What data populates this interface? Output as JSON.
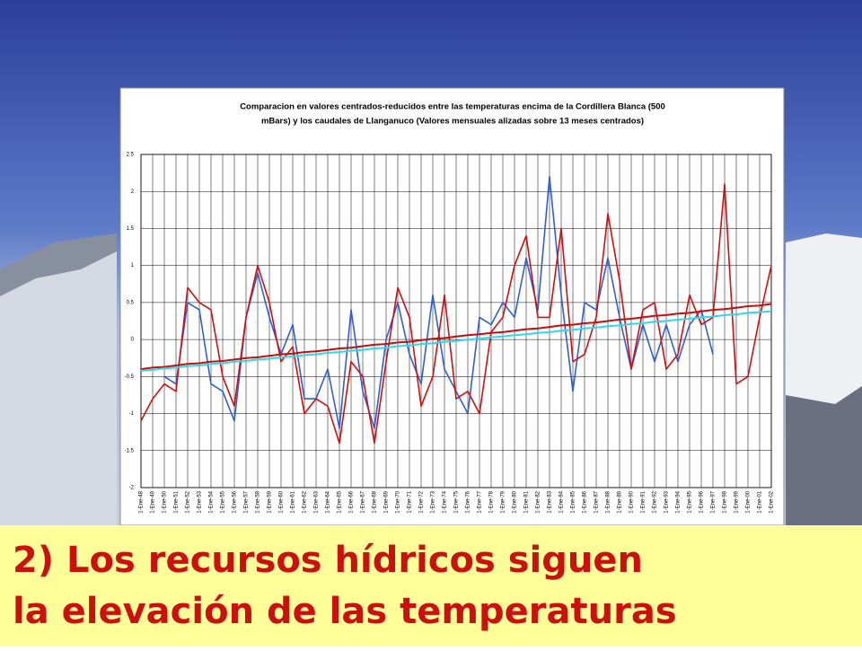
{
  "slide": {
    "caption": [
      "2) Los recursos hídricos siguen",
      "la elevación de las temperaturas"
    ]
  },
  "chart_data": {
    "type": "line",
    "title": [
      "Comparacion en valores centrados-reducidos entre las temperaturas encima de la Cordillera Blanca (500",
      "mBars) y los caudales de Llanganuco (Valores mensuales alizadas sobre 13 meses centrados)"
    ],
    "categories": [
      "1-Ene-48",
      "1-Ene-49",
      "1-Ene-50",
      "1-Ene-51",
      "1-Ene-52",
      "1-Ene-53",
      "1-Ene-54",
      "1-Ene-55",
      "1-Ene-56",
      "1-Ene-57",
      "1-Ene-58",
      "1-Ene-59",
      "1-Ene-60",
      "1-Ene-61",
      "1-Ene-62",
      "1-Ene-63",
      "1-Ene-64",
      "1-Ene-65",
      "1-Ene-66",
      "1-Ene-67",
      "1-Ene-68",
      "1-Ene-69",
      "1-Ene-70",
      "1-Ene-71",
      "1-Ene-72",
      "1-Ene-73",
      "1-Ene-74",
      "1-Ene-75",
      "1-Ene-76",
      "1-Ene-77",
      "1-Ene-78",
      "1-Ene-79",
      "1-Ene-80",
      "1-Ene-81",
      "1-Ene-82",
      "1-Ene-83",
      "1-Ene-84",
      "1-Ene-85",
      "1-Ene-86",
      "1-Ene-87",
      "1-Ene-88",
      "1-Ene-89",
      "1-Ene-90",
      "1-Ene-91",
      "1-Ene-92",
      "1-Ene-93",
      "1-Ene-94",
      "1-Ene-95",
      "1-Ene-96",
      "1-Ene-97",
      "1-Ene-98",
      "1-Ene-99",
      "1-Ene-00",
      "1-Ene-01",
      "1-Ene-02"
    ],
    "series": [
      {
        "color": "#2f5fd0",
        "values": [
          null,
          null,
          -0.5,
          -0.6,
          0.5,
          0.4,
          -0.6,
          -0.7,
          -1.1,
          0.3,
          0.9,
          0.3,
          -0.2,
          0.2,
          -0.8,
          -0.8,
          -0.4,
          -1.2,
          0.4,
          -0.7,
          -1.2,
          0.0,
          0.5,
          -0.2,
          -0.6,
          0.6,
          -0.4,
          -0.7,
          -1.0,
          0.3,
          0.2,
          0.5,
          0.3,
          1.1,
          0.4,
          2.2,
          0.6,
          -0.7,
          0.5,
          0.4,
          1.1,
          0.3,
          -0.4,
          0.2,
          -0.3,
          0.2,
          -0.3,
          0.2,
          0.4,
          -0.2,
          null,
          null,
          null,
          null,
          null
        ]
      },
      {
        "color": "#d01010",
        "values": [
          -1.1,
          -0.8,
          -0.6,
          -0.7,
          0.7,
          0.5,
          0.4,
          -0.5,
          -0.9,
          0.3,
          1.0,
          0.5,
          -0.3,
          -0.1,
          -1.0,
          -0.8,
          -0.9,
          -1.4,
          -0.3,
          -0.5,
          -1.4,
          -0.3,
          0.7,
          0.3,
          -0.9,
          -0.5,
          0.6,
          -0.8,
          -0.7,
          -1.0,
          0.1,
          0.3,
          1.0,
          1.4,
          0.3,
          0.3,
          1.5,
          -0.3,
          -0.2,
          0.3,
          1.7,
          0.8,
          -0.4,
          0.4,
          0.5,
          -0.4,
          -0.2,
          0.6,
          0.2,
          0.3,
          2.1,
          -0.6,
          -0.5,
          0.3,
          1.0
        ]
      },
      {
        "color": "#c01010",
        "values": [
          -0.4,
          -0.38,
          -0.37,
          -0.35,
          -0.33,
          -0.32,
          -0.3,
          -0.29,
          -0.27,
          -0.25,
          -0.24,
          -0.22,
          -0.2,
          -0.19,
          -0.17,
          -0.16,
          -0.14,
          -0.12,
          -0.11,
          -0.09,
          -0.07,
          -0.06,
          -0.04,
          -0.03,
          -0.01,
          0.01,
          0.02,
          0.04,
          0.06,
          0.07,
          0.09,
          0.1,
          0.12,
          0.14,
          0.15,
          0.17,
          0.19,
          0.2,
          0.22,
          0.23,
          0.25,
          0.27,
          0.28,
          0.3,
          0.32,
          0.33,
          0.35,
          0.36,
          0.38,
          0.4,
          0.41,
          0.43,
          0.45,
          0.46,
          0.48
        ]
      },
      {
        "color": "#30d8e8",
        "values": [
          -0.42,
          -0.41,
          -0.39,
          -0.38,
          -0.36,
          -0.35,
          -0.33,
          -0.32,
          -0.3,
          -0.29,
          -0.27,
          -0.26,
          -0.24,
          -0.23,
          -0.21,
          -0.2,
          -0.18,
          -0.17,
          -0.15,
          -0.14,
          -0.12,
          -0.11,
          -0.09,
          -0.08,
          -0.06,
          -0.05,
          -0.03,
          -0.02,
          0.0,
          0.01,
          0.03,
          0.04,
          0.06,
          0.07,
          0.09,
          0.1,
          0.12,
          0.13,
          0.15,
          0.16,
          0.18,
          0.19,
          0.21,
          0.22,
          0.24,
          0.25,
          0.27,
          0.28,
          0.3,
          0.31,
          0.33,
          0.34,
          0.36,
          0.37,
          0.38
        ]
      }
    ],
    "ylim": [
      -2,
      2.5
    ],
    "yticks": [
      2.5,
      2,
      1.5,
      1,
      0.5,
      0,
      -0.5,
      -1,
      -1.5,
      -2
    ],
    "grid": true
  }
}
